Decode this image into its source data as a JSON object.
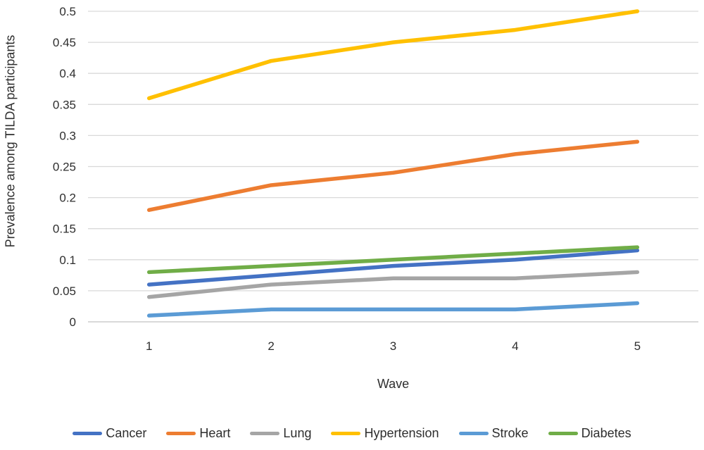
{
  "chart_data": {
    "type": "line",
    "x": [
      1,
      2,
      3,
      4,
      5
    ],
    "x_ticks": [
      "1",
      "2",
      "3",
      "4",
      "5"
    ],
    "y_ticks": [
      "0",
      "0.05",
      "0.1",
      "0.15",
      "0.2",
      "0.25",
      "0.3",
      "0.35",
      "0.4",
      "0.45",
      "0.5"
    ],
    "ytick_step": 0.05,
    "ylim": [
      0,
      0.5
    ],
    "xlabel": "Wave",
    "ylabel": "Prevalence among TILDA participants",
    "grid": true,
    "legend_position": "bottom",
    "gridline_color": "#d9d9d9",
    "text_color": "#2e2e2e",
    "series": [
      {
        "name": "Cancer",
        "color": "#4472C4",
        "values": [
          0.06,
          0.075,
          0.09,
          0.1,
          0.115
        ]
      },
      {
        "name": "Heart",
        "color": "#ED7D31",
        "values": [
          0.18,
          0.22,
          0.24,
          0.27,
          0.29
        ]
      },
      {
        "name": "Lung",
        "color": "#A5A5A5",
        "values": [
          0.04,
          0.06,
          0.07,
          0.07,
          0.08
        ]
      },
      {
        "name": "Hypertension",
        "color": "#FFC000",
        "values": [
          0.36,
          0.42,
          0.45,
          0.47,
          0.5
        ]
      },
      {
        "name": "Stroke",
        "color": "#5B9BD5",
        "values": [
          0.01,
          0.02,
          0.02,
          0.02,
          0.03
        ]
      },
      {
        "name": "Diabetes",
        "color": "#70AD47",
        "values": [
          0.08,
          0.09,
          0.1,
          0.11,
          0.12
        ]
      }
    ]
  }
}
